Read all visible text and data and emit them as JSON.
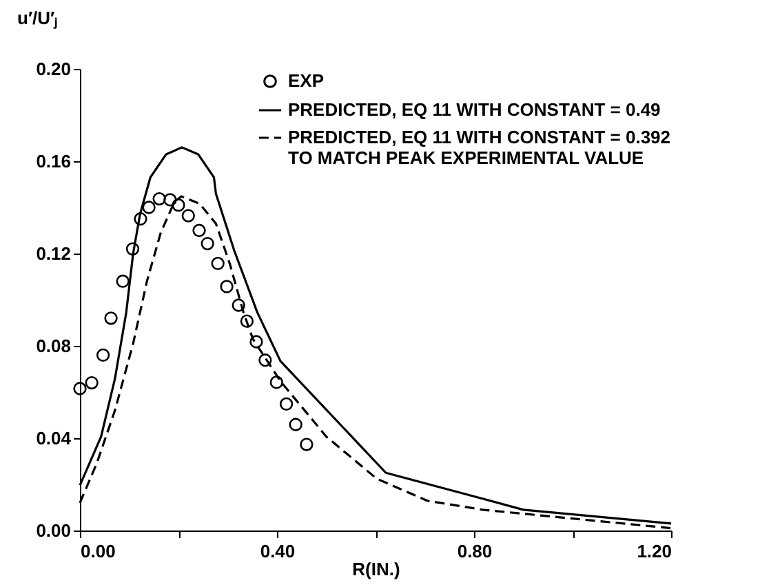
{
  "chart_data": {
    "type": "line",
    "xlabel": "R(IN.)",
    "ylabel": "u′/U′ⱼ",
    "xlim": [
      0,
      1.2
    ],
    "ylim": [
      0,
      0.2
    ],
    "xticks": [
      {
        "value": 0,
        "label": "0.00"
      },
      {
        "value": 0.2,
        "label": null
      },
      {
        "value": 0.4,
        "label": "0.40"
      },
      {
        "value": 0.6,
        "label": null
      },
      {
        "value": 0.8,
        "label": "0.80"
      },
      {
        "value": 1.0,
        "label": null
      },
      {
        "value": 1.2,
        "label": "1.20"
      }
    ],
    "yticks": [
      {
        "value": 0,
        "label": "0.00"
      },
      {
        "value": 0.04,
        "label": "0.04"
      },
      {
        "value": 0.08,
        "label": "0.08"
      },
      {
        "value": 0.12,
        "label": "0.12"
      },
      {
        "value": 0.16,
        "label": "0.16"
      },
      {
        "value": 0.2,
        "label": "0.20"
      }
    ],
    "grid": false,
    "legend": "top right",
    "series": [
      {
        "name": "EXP",
        "type": "scatter",
        "marker": "circle",
        "color": "#000000",
        "x": [
          0.0,
          0.024,
          0.047,
          0.063,
          0.087,
          0.107,
          0.123,
          0.14,
          0.161,
          0.183,
          0.2,
          0.22,
          0.242,
          0.259,
          0.28,
          0.298,
          0.322,
          0.339,
          0.358,
          0.376,
          0.399,
          0.419,
          0.438,
          0.46
        ],
        "values": [
          0.0615,
          0.064,
          0.076,
          0.092,
          0.108,
          0.122,
          0.135,
          0.14,
          0.1437,
          0.1433,
          0.141,
          0.1364,
          0.13,
          0.1243,
          0.1157,
          0.1057,
          0.0976,
          0.0907,
          0.0818,
          0.0738,
          0.0642,
          0.0548,
          0.0459,
          0.0373
        ]
      },
      {
        "name": "PREDICTED, EQ 11 WITH CONSTANT = 0.49",
        "type": "line",
        "line_style": "solid",
        "color": "#000000",
        "x": [
          0.0,
          0.043,
          0.071,
          0.094,
          0.108,
          0.122,
          0.143,
          0.175,
          0.207,
          0.24,
          0.272,
          0.276,
          0.313,
          0.36,
          0.407,
          0.621,
          0.817,
          0.9,
          1.2
        ],
        "values": [
          0.0196,
          0.0407,
          0.0657,
          0.0945,
          0.12,
          0.137,
          0.153,
          0.163,
          0.166,
          0.163,
          0.153,
          0.146,
          0.1214,
          0.0945,
          0.0734,
          0.025,
          0.0138,
          0.009,
          0.003
        ]
      },
      {
        "name": "PREDICTED, EQ 11 WITH CONSTANT = 0.392\nTO MATCH PEAK EXPERIMENTAL VALUE",
        "type": "line",
        "line_style": "dashed",
        "color": "#000000",
        "x": [
          0.0,
          0.034,
          0.071,
          0.108,
          0.136,
          0.164,
          0.192,
          0.206,
          0.243,
          0.276,
          0.304,
          0.332,
          0.351,
          0.407,
          0.5,
          0.602,
          0.705,
          0.817,
          1.2
        ],
        "values": [
          0.012,
          0.029,
          0.052,
          0.081,
          0.108,
          0.129,
          0.1425,
          0.1448,
          0.1416,
          0.133,
          0.1157,
          0.0945,
          0.083,
          0.0647,
          0.0407,
          0.0225,
          0.0129,
          0.009,
          0.001
        ]
      }
    ]
  }
}
